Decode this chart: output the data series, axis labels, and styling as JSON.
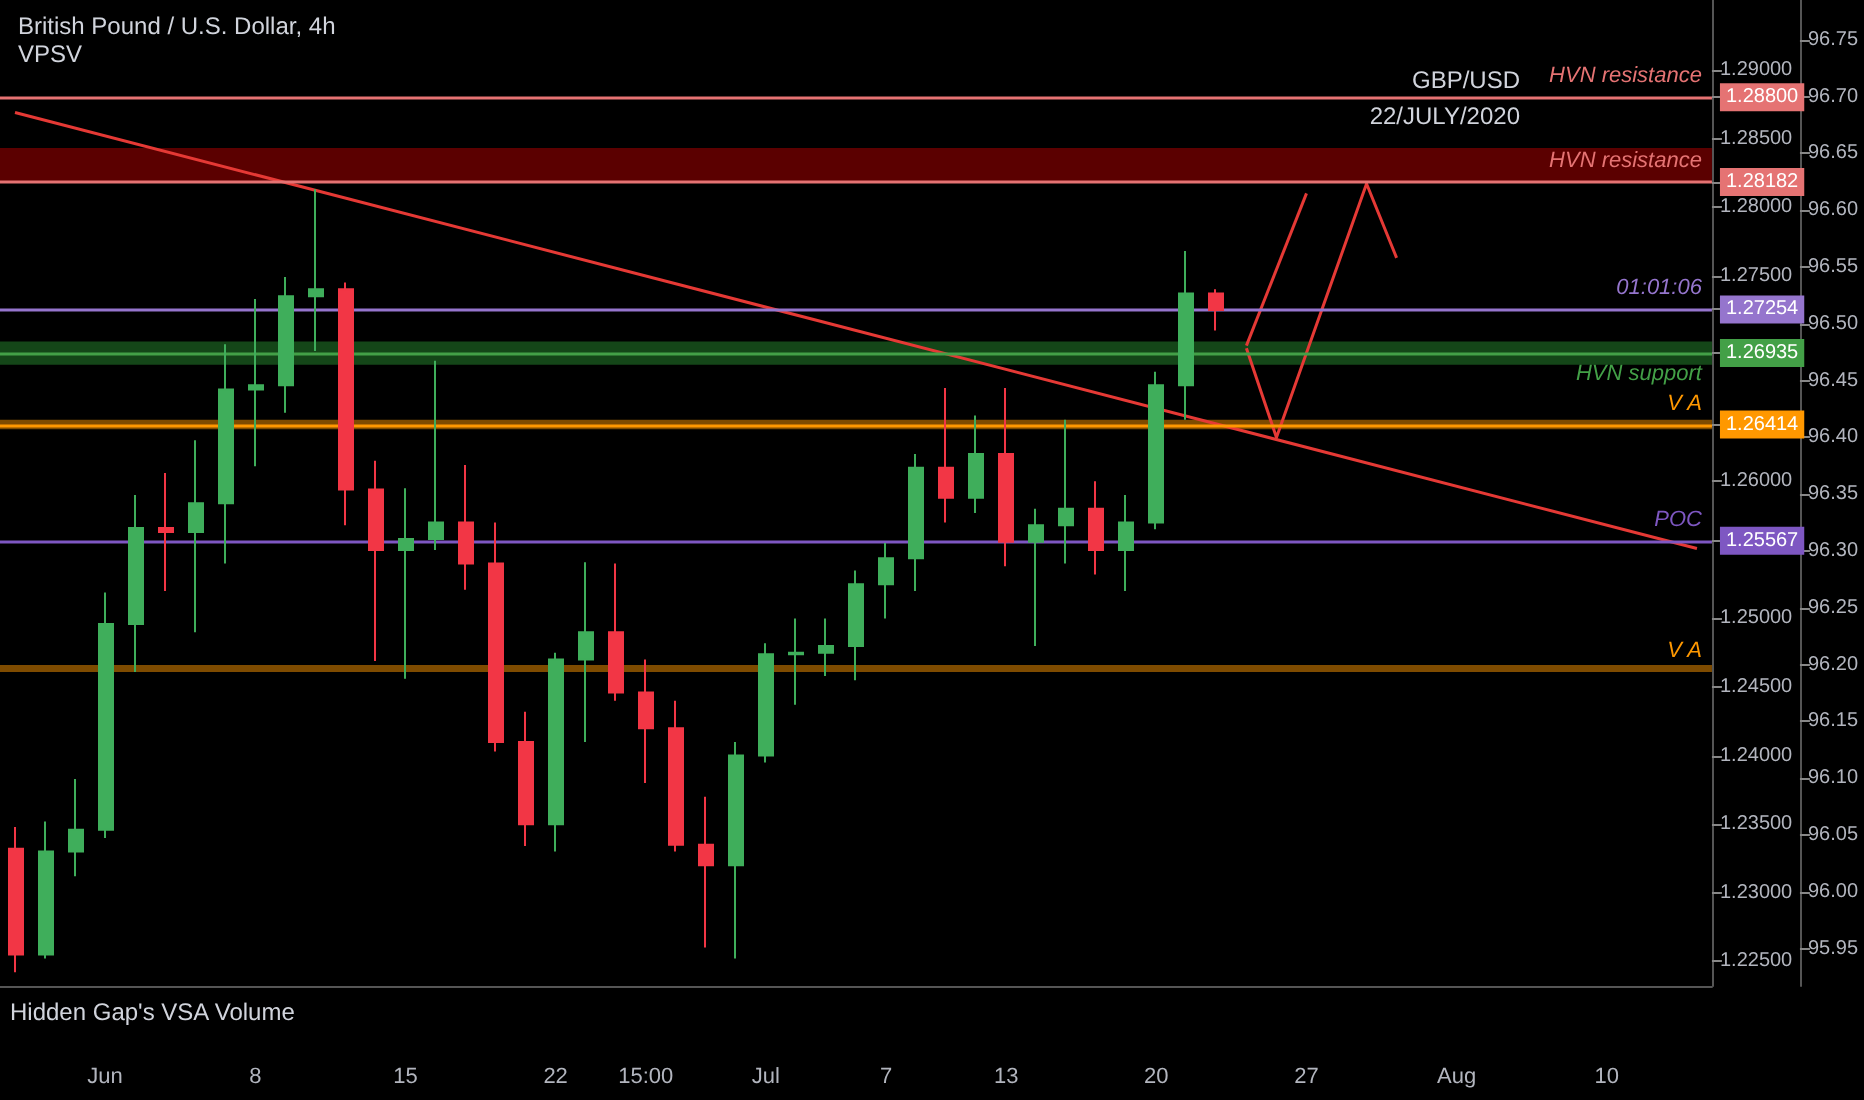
{
  "chart_data": {
    "type": "candlestick",
    "title": "British Pound / U.S. Dollar, 4h",
    "subtitle": "VPSV",
    "categories": [
      null,
      null,
      null,
      "Jun",
      null,
      null,
      null,
      null,
      "8",
      null,
      null,
      null,
      null,
      "15",
      null,
      null,
      null,
      null,
      "22",
      null,
      null,
      "15:00",
      null,
      null,
      null,
      "Jul",
      null,
      null,
      null,
      "7",
      null,
      null,
      null,
      "13",
      null,
      null,
      null,
      null,
      "20",
      null,
      null,
      null,
      null,
      "27",
      null,
      null,
      null,
      null,
      "Aug",
      null,
      null,
      null,
      null,
      "10",
      null,
      null,
      null
    ],
    "ohlc": [
      [
        1.2332,
        1.2348,
        1.2242,
        1.2255
      ],
      [
        1.2255,
        1.2352,
        1.2252,
        1.233
      ],
      [
        1.233,
        1.2383,
        1.2312,
        1.2346
      ],
      [
        1.2346,
        1.2519,
        1.234,
        1.2496
      ],
      [
        1.2496,
        1.259,
        1.2461,
        1.2566
      ],
      [
        1.2566,
        1.2606,
        1.252,
        1.2563
      ],
      [
        1.2563,
        1.263,
        1.249,
        1.2584
      ],
      [
        1.2584,
        1.27,
        1.254,
        1.2667
      ],
      [
        1.2667,
        1.2733,
        1.2611,
        1.267
      ],
      [
        1.267,
        1.2749,
        1.265,
        1.2735
      ],
      [
        1.2735,
        1.2813,
        1.2695,
        1.274
      ],
      [
        1.274,
        1.2745,
        1.2568,
        1.2594
      ],
      [
        1.2594,
        1.2615,
        1.2469,
        1.255
      ],
      [
        1.255,
        1.2595,
        1.2456,
        1.2558
      ],
      [
        1.2558,
        1.2688,
        1.255,
        1.257
      ],
      [
        1.257,
        1.2612,
        1.2521,
        1.254
      ],
      [
        1.254,
        1.257,
        1.2403,
        1.241
      ],
      [
        1.241,
        1.2432,
        1.2334,
        1.235
      ],
      [
        1.235,
        1.2475,
        1.233,
        1.247
      ],
      [
        1.247,
        1.2541,
        1.241,
        1.249
      ],
      [
        1.249,
        1.254,
        1.244,
        1.2446
      ],
      [
        1.2446,
        1.247,
        1.238,
        1.242
      ],
      [
        1.242,
        1.244,
        1.233,
        1.2335
      ],
      [
        1.2335,
        1.237,
        1.226,
        1.232
      ],
      [
        1.232,
        1.241,
        1.2252,
        1.24
      ],
      [
        1.24,
        1.2482,
        1.2395,
        1.2474
      ],
      [
        1.2474,
        1.25,
        1.2437,
        1.2475
      ],
      [
        1.2475,
        1.25,
        1.2458,
        1.248
      ],
      [
        1.248,
        1.2535,
        1.2455,
        1.2525
      ],
      [
        1.2525,
        1.2555,
        1.25,
        1.2544
      ],
      [
        1.2544,
        1.262,
        1.252,
        1.261
      ],
      [
        1.261,
        1.2668,
        1.257,
        1.2588
      ],
      [
        1.2588,
        1.2648,
        1.2577,
        1.262
      ],
      [
        1.262,
        1.2668,
        1.2538,
        1.2556
      ],
      [
        1.2556,
        1.258,
        1.248,
        1.2568
      ],
      [
        1.2568,
        1.2645,
        1.254,
        1.258
      ],
      [
        1.258,
        1.26,
        1.2532,
        1.255
      ],
      [
        1.255,
        1.259,
        1.252,
        1.257
      ],
      [
        1.257,
        1.268,
        1.2565,
        1.267
      ],
      [
        1.267,
        1.2768,
        1.2645,
        1.2737
      ],
      [
        1.2737,
        1.274,
        1.271,
        1.2725
      ],
      null,
      null,
      null,
      null,
      null,
      null,
      null,
      null,
      null,
      null,
      null,
      null,
      null,
      null,
      null,
      null
    ],
    "series": [
      {
        "type": "line",
        "color": "#e53935",
        "values": [
          1.2869,
          null,
          null,
          null,
          null,
          null,
          null,
          null,
          null,
          null,
          null,
          null,
          null,
          null,
          null,
          null,
          null,
          null,
          null,
          null,
          null,
          null,
          null,
          null,
          null,
          null,
          null,
          null,
          null,
          null,
          null,
          null,
          null,
          null,
          null,
          null,
          null,
          null,
          null,
          null,
          null,
          null,
          null,
          null,
          null,
          null,
          null,
          null,
          null,
          null,
          null,
          null,
          null,
          null,
          null,
          null,
          1.2551
        ]
      },
      {
        "type": "line",
        "color": "#e53935",
        "values": [
          null,
          null,
          null,
          null,
          null,
          null,
          null,
          null,
          null,
          null,
          null,
          null,
          null,
          null,
          null,
          null,
          null,
          null,
          null,
          null,
          null,
          null,
          null,
          null,
          null,
          null,
          null,
          null,
          null,
          null,
          null,
          null,
          null,
          null,
          null,
          null,
          null,
          null,
          null,
          null,
          null,
          1.2699,
          null,
          1.281,
          null,
          null,
          null,
          null,
          null,
          null,
          null,
          null,
          null,
          null,
          null,
          null,
          null
        ]
      },
      {
        "type": "line",
        "color": "#e53935",
        "values": [
          null,
          null,
          null,
          null,
          null,
          null,
          null,
          null,
          null,
          null,
          null,
          null,
          null,
          null,
          null,
          null,
          null,
          null,
          null,
          null,
          null,
          null,
          null,
          null,
          null,
          null,
          null,
          null,
          null,
          null,
          null,
          null,
          null,
          null,
          null,
          null,
          null,
          null,
          null,
          null,
          null,
          1.2697,
          1.2632,
          null,
          null,
          1.2817,
          1.2763,
          null,
          null,
          null,
          null,
          null,
          null,
          null,
          null,
          null,
          null
        ]
      }
    ],
    "ylim": [
      1.2232,
      1.2951
    ],
    "yticks": [
      {
        "value": 1.225,
        "label": "1.22500"
      },
      {
        "value": 1.23,
        "label": "1.23000"
      },
      {
        "value": 1.235,
        "label": "1.23500"
      },
      {
        "value": 1.24,
        "label": "1.24000"
      },
      {
        "value": 1.245,
        "label": "1.24500"
      },
      {
        "value": 1.25,
        "label": "1.25000"
      },
      {
        "value": 1.25567,
        "label": "1.25567"
      },
      {
        "value": 1.26,
        "label": "1.26000"
      },
      {
        "value": 1.26414,
        "label": "1.26414"
      },
      {
        "value": 1.26935,
        "label": "1.26935"
      },
      {
        "value": 1.27254,
        "label": "1.27254"
      },
      {
        "value": 1.275,
        "label": "1.27500"
      },
      {
        "value": 1.28,
        "label": "1.28000"
      },
      {
        "value": 1.28182,
        "label": "1.28182"
      },
      {
        "value": 1.285,
        "label": "1.28500"
      },
      {
        "value": 1.288,
        "label": "1.28800"
      },
      {
        "value": 1.29,
        "label": "1.29000"
      }
    ],
    "y2lim": [
      95.917,
      96.785
    ],
    "y2ticks": [
      95.95,
      {
        "value": 96,
        "label": "96.00"
      },
      96.05,
      {
        "value": 96.1,
        "label": "96.10"
      },
      96.15,
      {
        "value": 96.2,
        "label": "96.20"
      },
      96.25,
      {
        "value": 96.3,
        "label": "96.30"
      },
      96.35,
      {
        "value": 96.4,
        "label": "96.40"
      },
      96.45,
      {
        "value": 96.5,
        "label": "96.50"
      },
      96.55,
      {
        "value": 96.6,
        "label": "96.60"
      },
      96.65,
      {
        "value": 96.7,
        "label": "96.70"
      },
      96.75
    ],
    "ref_lines": [
      {
        "axis": "y",
        "value": 1.288,
        "label": "HVN resistance",
        "color": "#e57373"
      },
      {
        "axis": "y",
        "value": 1.28182,
        "label": "HVN resistance",
        "color": "#e57373"
      },
      {
        "axis": "y",
        "value": 1.27254,
        "label": "01:01:06",
        "color": "#9575cd"
      },
      {
        "axis": "y",
        "value": 1.26935,
        "label": "HVN support",
        "color": "#43a047"
      },
      {
        "axis": "y",
        "value": 1.26414,
        "label": "V A",
        "color": "#ff9800"
      },
      {
        "axis": "y",
        "value": 1.25567,
        "label": "POC",
        "color": "#7e57c2"
      }
    ],
    "bands": [
      {
        "axis": "y",
        "from": 1.2818,
        "to": 1.2843,
        "color": "#7a0000"
      },
      {
        "axis": "y",
        "from": 1.2685,
        "to": 1.2702,
        "color": "#1b5e20"
      },
      {
        "axis": "y",
        "from": 1.2638,
        "to": 1.2645,
        "color": "#a86400"
      },
      {
        "axis": "y",
        "from": 1.2461,
        "to": 1.2466,
        "label": "V A",
        "color": "#a86400"
      }
    ],
    "annotations": [
      "GBP/USD",
      "22/JULY/2020",
      "Hidden Gap's VSA Volume"
    ],
    "grid": false
  }
}
